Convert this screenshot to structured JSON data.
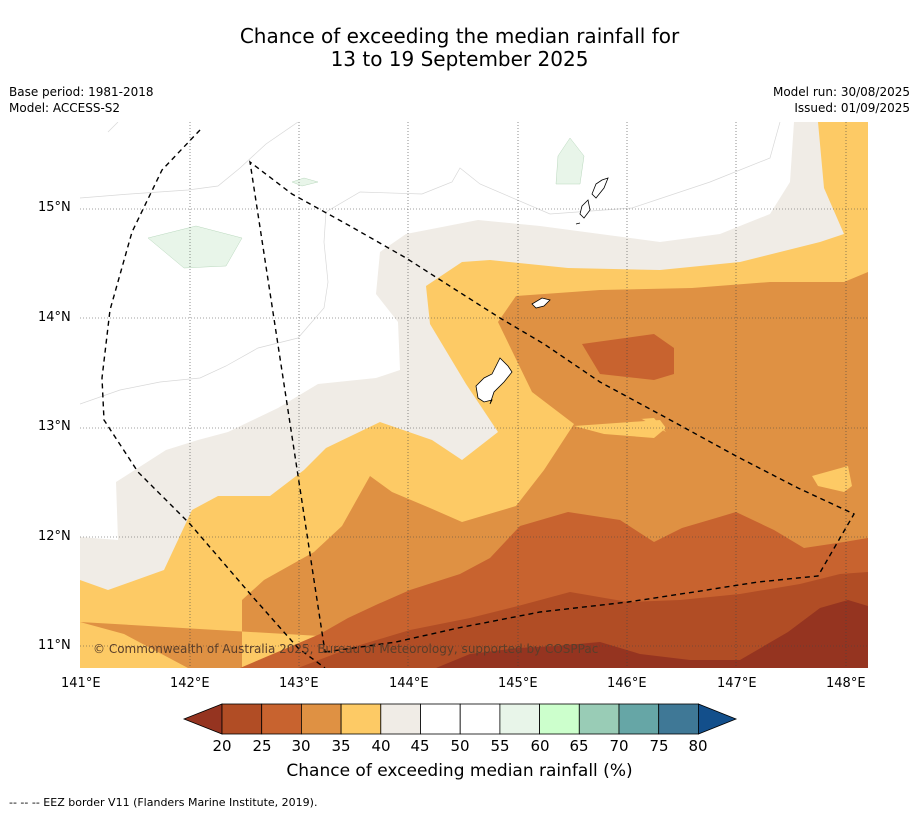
{
  "title": {
    "line1": "Chance of exceeding the median rainfall for",
    "line2": "13 to 19 September 2025"
  },
  "meta_left": {
    "base_period": "Base period: 1981-2018",
    "model": "Model: ACCESS-S2"
  },
  "meta_right": {
    "model_run": "Model run: 30/08/2025",
    "issued": "Issued: 01/09/2025"
  },
  "map": {
    "lat_labels": [
      "15°N",
      "14°N",
      "13°N",
      "12°N",
      "11°N"
    ],
    "lon_labels": [
      "141°E",
      "142°E",
      "143°E",
      "144°E",
      "145°E",
      "146°E",
      "147°E",
      "148°E"
    ],
    "copyright": "© Commonwealth of Australia 2025, Bureau of Meteorology, supported by COSPPac",
    "colors": {
      "c20": "#953420",
      "c25": "#b14d25",
      "c30": "#c8632f",
      "c35": "#df9143",
      "c40": "#fdca65",
      "c45": "#f0ece6",
      "c50": "#ffffff",
      "c60": "#e8f5e9",
      "c65": "#ccffcc",
      "c70": "#99ccb6",
      "c75": "#66a6a6",
      "c80": "#3f7896",
      "over": "#134f8b"
    }
  },
  "colorbar": {
    "labels": [
      "20",
      "25",
      "30",
      "35",
      "40",
      "45",
      "50",
      "55",
      "60",
      "65",
      "70",
      "75",
      "80"
    ],
    "title": "Chance of exceeding median rainfall (%)"
  },
  "footnote": "--  --  -- EEZ border V11 (Flanders Marine Institute, 2019)."
}
